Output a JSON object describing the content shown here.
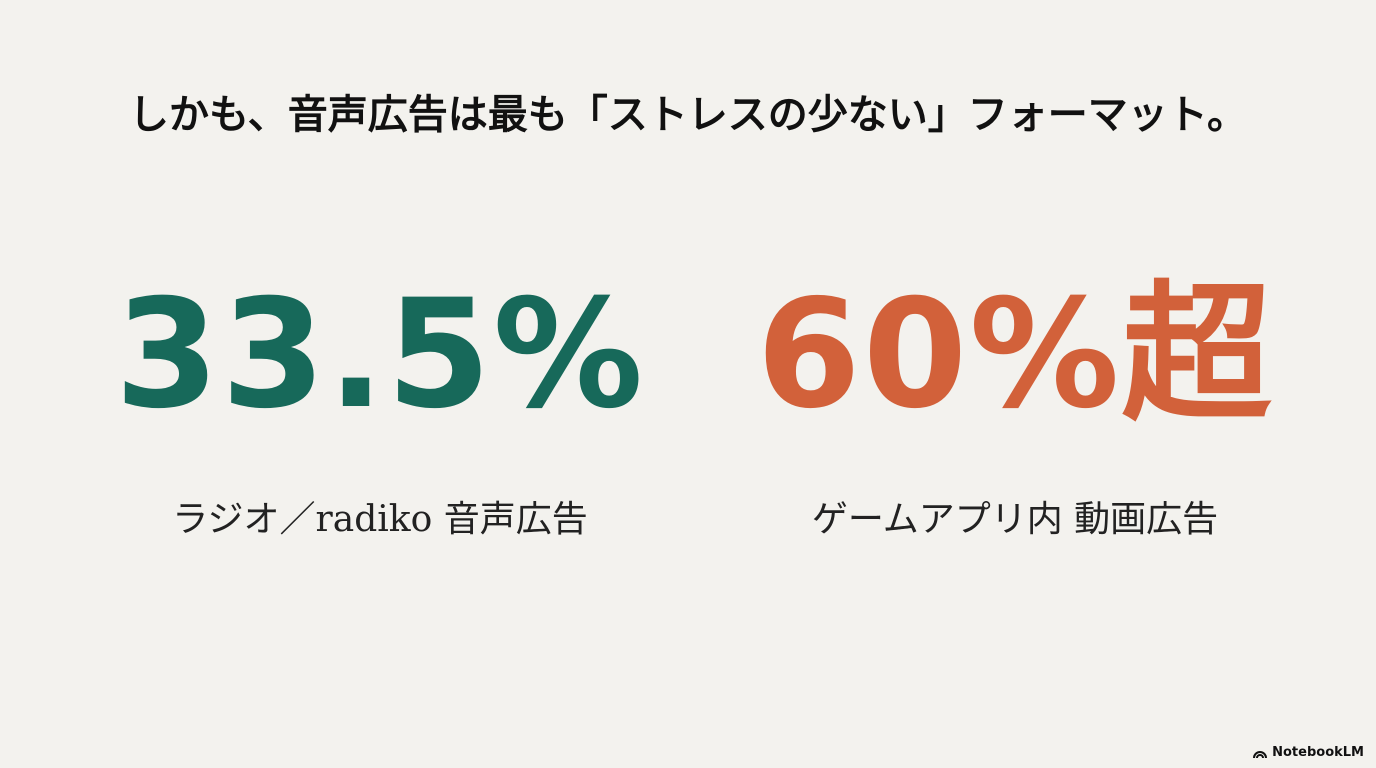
{
  "header": {
    "title": "しかも、音声広告は最も「ストレスの少ない」フォーマット。"
  },
  "stats": [
    {
      "value": "33.5%",
      "label": "ラジオ／radiko 音声広告",
      "color": "#17695a"
    },
    {
      "value": "60%超",
      "label": "ゲームアプリ内 動画広告",
      "color": "#d2613a"
    }
  ],
  "footer": {
    "brand": "NotebookLM"
  }
}
